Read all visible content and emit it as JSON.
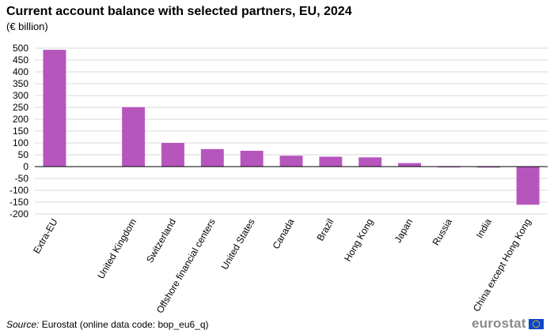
{
  "header": {
    "title": "Current account balance with selected partners, EU, 2024",
    "subtitle": "(€ billion)"
  },
  "footer": {
    "source_label": "Source:",
    "source_text": " Eurostat (online data code: bop_eu6_q)",
    "logo_text": "eurostat"
  },
  "chart_data": {
    "type": "bar",
    "categories": [
      "Extra-EU",
      "",
      "United Kingdom",
      "Switzerland",
      "Offshore financial centers",
      "United States",
      "Canada",
      "Brazil",
      "Hong Kong",
      "Japan",
      "Russia",
      "India",
      "China except Hong Kong"
    ],
    "values": [
      493,
      null,
      251,
      100,
      74,
      67,
      46,
      42,
      39,
      15,
      -2,
      -4,
      -161
    ],
    "title": "Current account balance with selected partners, EU, 2024",
    "ylabel": "(€ billion)",
    "ylim": [
      -200,
      500
    ],
    "yticks": [
      -200,
      -150,
      -100,
      -50,
      0,
      50,
      100,
      150,
      200,
      250,
      300,
      350,
      400,
      450,
      500
    ],
    "grid": true,
    "bar_color": "#b656bd",
    "grid_color": "#d9d9d9"
  }
}
